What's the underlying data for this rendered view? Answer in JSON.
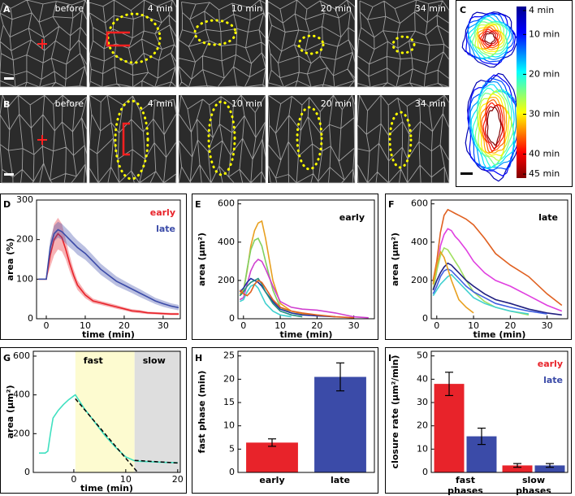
{
  "image_panels": [
    {
      "letter": "A",
      "frames": [
        "before",
        "4 min",
        "10 min",
        "20 min",
        "34 min"
      ]
    },
    {
      "letter": "B",
      "frames": [
        "before",
        "4 min",
        "10 min",
        "20 min",
        "34 min"
      ]
    }
  ],
  "colorbar_panel": {
    "letter": "C",
    "lim": [
      3,
      46
    ],
    "ticks": [
      {
        "value": 4,
        "label": "4 min"
      },
      {
        "value": 10,
        "label": "10 min"
      },
      {
        "value": 20,
        "label": "20 min"
      },
      {
        "value": 30,
        "label": "30 min"
      },
      {
        "value": 40,
        "label": "40 min"
      },
      {
        "value": 45,
        "label": "45 min"
      }
    ]
  },
  "chart_data": [
    {
      "type": "line",
      "panel": "D",
      "xlabel": "time (min)",
      "ylabel": "area (%)",
      "xlim": [
        -2.5,
        34.4
      ],
      "ylim": [
        0,
        300
      ],
      "xticks": [
        0,
        10,
        20,
        30
      ],
      "yticks": [
        0,
        100,
        200,
        300
      ],
      "legend": "upper right",
      "x": [
        -2,
        -1,
        0,
        1,
        2,
        3,
        4,
        5,
        6,
        7,
        8,
        10,
        12,
        14,
        16,
        18,
        20,
        22,
        24,
        26,
        28,
        30,
        32,
        34
      ],
      "series": [
        {
          "name": "early",
          "color": "#e8232a",
          "values": [
            100,
            100,
            100,
            160,
            200,
            215,
            205,
            175,
            140,
            110,
            85,
            60,
            45,
            40,
            35,
            30,
            25,
            20,
            18,
            15,
            14,
            13,
            12,
            12
          ],
          "errors": [
            0,
            0,
            0,
            30,
            40,
            40,
            35,
            25,
            20,
            15,
            12,
            8,
            6,
            5,
            5,
            5,
            4,
            4,
            4,
            3,
            3,
            3,
            3,
            3
          ]
        },
        {
          "name": "late",
          "color": "#3b4ba8",
          "values": [
            100,
            100,
            100,
            180,
            215,
            225,
            220,
            210,
            200,
            190,
            180,
            165,
            145,
            125,
            110,
            95,
            85,
            75,
            65,
            55,
            45,
            38,
            32,
            28
          ],
          "errors": [
            0,
            0,
            0,
            20,
            20,
            20,
            20,
            20,
            20,
            18,
            18,
            16,
            15,
            14,
            13,
            12,
            11,
            10,
            10,
            9,
            8,
            8,
            7,
            7
          ]
        }
      ]
    },
    {
      "type": "line",
      "panel": "E",
      "annotation": "early",
      "xlabel": "time (min)",
      "ylabel": "area (μm²)",
      "xlim": [
        -1.5,
        35.6
      ],
      "ylim": [
        0,
        620
      ],
      "xticks": [
        0,
        10,
        20,
        30
      ],
      "yticks": [
        0,
        200,
        400,
        600
      ],
      "x": [
        -1,
        0,
        1,
        2,
        3,
        4,
        5,
        6,
        8,
        10,
        13,
        16,
        20,
        25,
        30,
        34
      ],
      "series": [
        {
          "color": "#e8a020",
          "values": [
            130,
            150,
            250,
            380,
            460,
            500,
            510,
            420,
            200,
            80,
            40,
            25,
            15,
            null,
            null,
            null
          ]
        },
        {
          "color": "#80d060",
          "values": [
            120,
            140,
            260,
            360,
            410,
            420,
            380,
            300,
            150,
            60,
            30,
            20,
            null,
            null,
            null,
            null
          ]
        },
        {
          "color": "#d040d0",
          "values": [
            100,
            110,
            180,
            250,
            290,
            310,
            300,
            260,
            170,
            90,
            60,
            50,
            45,
            30,
            10,
            5
          ]
        },
        {
          "color": "#2030a0",
          "values": [
            140,
            160,
            190,
            210,
            200,
            190,
            170,
            140,
            90,
            50,
            30,
            20,
            15,
            10,
            null,
            null
          ]
        },
        {
          "color": "#40d0d0",
          "values": [
            90,
            100,
            140,
            170,
            180,
            160,
            120,
            80,
            40,
            20,
            10,
            null,
            null,
            null,
            null,
            null
          ]
        },
        {
          "color": "#209080",
          "values": [
            120,
            140,
            170,
            190,
            200,
            210,
            180,
            140,
            80,
            40,
            20,
            10,
            null,
            null,
            null,
            null
          ]
        },
        {
          "color": "#e06020",
          "values": [
            150,
            130,
            120,
            140,
            180,
            200,
            190,
            160,
            100,
            60,
            40,
            30,
            20,
            10,
            5,
            null
          ]
        }
      ]
    },
    {
      "type": "line",
      "panel": "F",
      "annotation": "late",
      "xlabel": "time (min)",
      "ylabel": "area (μm²)",
      "xlim": [
        -1.5,
        35.6
      ],
      "ylim": [
        0,
        620
      ],
      "xticks": [
        0,
        10,
        20,
        30
      ],
      "yticks": [
        0,
        200,
        400,
        600
      ],
      "x": [
        -1,
        0,
        1,
        2,
        3,
        4,
        5,
        6,
        8,
        10,
        13,
        16,
        20,
        25,
        30,
        34
      ],
      "series": [
        {
          "color": "#e06020",
          "values": [
            200,
            300,
            450,
            540,
            570,
            560,
            550,
            540,
            520,
            490,
            420,
            340,
            280,
            220,
            130,
            70
          ]
        },
        {
          "color": "#e040e0",
          "values": [
            150,
            250,
            380,
            440,
            470,
            460,
            430,
            410,
            360,
            300,
            240,
            200,
            170,
            120,
            70,
            40
          ]
        },
        {
          "color": "#a0e060",
          "values": [
            150,
            250,
            330,
            370,
            360,
            330,
            300,
            270,
            200,
            140,
            90,
            60,
            40,
            20,
            null,
            null
          ]
        },
        {
          "color": "#202080",
          "values": [
            150,
            200,
            240,
            270,
            290,
            280,
            260,
            240,
            200,
            170,
            130,
            100,
            80,
            50,
            30,
            20
          ]
        },
        {
          "color": "#4060e0",
          "values": [
            130,
            170,
            220,
            250,
            260,
            250,
            230,
            210,
            170,
            140,
            110,
            80,
            60,
            40,
            25,
            null
          ]
        },
        {
          "color": "#40d0d0",
          "values": [
            120,
            150,
            180,
            200,
            220,
            230,
            210,
            190,
            150,
            110,
            80,
            60,
            40,
            25,
            null,
            null
          ]
        },
        {
          "color": "#e8a020",
          "values": [
            180,
            280,
            350,
            320,
            260,
            200,
            150,
            100,
            60,
            30,
            null,
            null,
            null,
            null,
            null,
            null
          ]
        }
      ]
    },
    {
      "type": "line",
      "panel": "G",
      "xlabel": "time (min)",
      "ylabel": "area (μm²)",
      "xlim": [
        -7.8,
        20.5
      ],
      "ylim": [
        0,
        625
      ],
      "xticks": [
        0,
        10,
        20
      ],
      "yticks": [
        0,
        200,
        400,
        600
      ],
      "regions": [
        {
          "label": "fast",
          "xlim": [
            0.3,
            11.7
          ],
          "color": "#fdfbd0"
        },
        {
          "label": "slow",
          "xlim": [
            11.7,
            20.5
          ],
          "color": "#dedede"
        }
      ],
      "series": [
        {
          "color": "#40e0c0",
          "x": [
            -6.7,
            -5.5,
            -5,
            -4.5,
            -4,
            -3,
            -2,
            -1,
            0,
            0.3,
            2,
            4,
            6,
            8,
            10,
            11.7,
            13,
            15,
            17,
            20
          ],
          "values": [
            100,
            100,
            110,
            200,
            280,
            320,
            350,
            375,
            395,
            400,
            330,
            260,
            190,
            130,
            80,
            60,
            57,
            55,
            52,
            50
          ]
        }
      ],
      "fit": [
        {
          "x": [
            0.3,
            12.3
          ],
          "values": [
            380,
            0
          ]
        },
        {
          "x": [
            11.7,
            20.5
          ],
          "values": [
            62,
            48
          ]
        }
      ]
    },
    {
      "type": "bar",
      "panel": "H",
      "ylabel": "fast phase (min)",
      "ylim": [
        0,
        26
      ],
      "yticks": [
        0,
        5,
        10,
        15,
        20,
        25
      ],
      "categories": [
        "early",
        "late"
      ],
      "values": [
        6.4,
        20.5
      ],
      "errors": [
        0.8,
        3
      ],
      "colors": [
        "#e8232a",
        "#3b4ba8"
      ]
    },
    {
      "type": "bar",
      "panel": "I",
      "ylabel": "closure rate (μm²/min)",
      "legend": "upper right",
      "ylim": [
        0,
        52
      ],
      "yticks": [
        0,
        10,
        20,
        30,
        40,
        50
      ],
      "categories": [
        "fast phases",
        "slow phases"
      ],
      "series": [
        {
          "name": "early",
          "color": "#e8232a",
          "values": [
            38,
            3
          ],
          "errors": [
            5,
            0.8
          ]
        },
        {
          "name": "late",
          "color": "#3b4ba8",
          "values": [
            15.5,
            3
          ],
          "errors": [
            3.5,
            0.8
          ]
        }
      ]
    }
  ]
}
